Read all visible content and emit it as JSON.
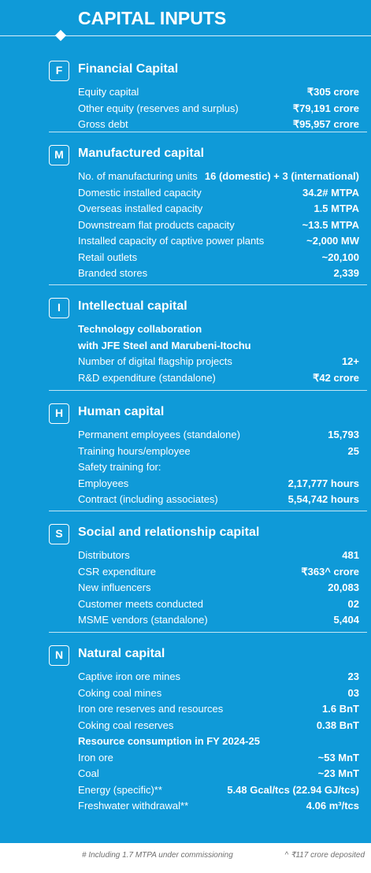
{
  "title": "CAPITAL INPUTS",
  "sections": [
    {
      "badge": "F",
      "title": "Financial Capital",
      "rows": [
        {
          "label": "Equity capital",
          "value": "₹305 crore"
        },
        {
          "label": "Other equity (reserves and surplus)",
          "value": "₹79,191 crore"
        },
        {
          "label": "Gross debt",
          "value": "₹95,957 crore"
        }
      ]
    },
    {
      "badge": "M",
      "title": "Manufactured capital",
      "rows": [
        {
          "label": "No. of manufacturing units",
          "value": "16 (domestic) + 3 (international)"
        },
        {
          "label": "Domestic installed capacity",
          "value": "34.2# MTPA"
        },
        {
          "label": "Overseas installed capacity",
          "value": "1.5 MTPA"
        },
        {
          "label": "Downstream flat products capacity",
          "value": "~13.5 MTPA"
        },
        {
          "label": "Installed capacity of captive power plants",
          "value": "~2,000 MW"
        },
        {
          "label": "Retail outlets",
          "value": "~20,100"
        },
        {
          "label": "Branded stores",
          "value": "2,339"
        }
      ]
    },
    {
      "badge": "I",
      "title": "Intellectual capital",
      "rows": [
        {
          "label": "Technology collaboration",
          "value": "",
          "sub": true
        },
        {
          "label": "with JFE Steel and Marubeni-Itochu",
          "value": "",
          "sub": true
        },
        {
          "label": "Number of digital flagship projects",
          "value": "12+"
        },
        {
          "label": "R&D expenditure (standalone)",
          "value": "₹42 crore"
        }
      ]
    },
    {
      "badge": "H",
      "title": "Human capital",
      "rows": [
        {
          "label": "Permanent employees (standalone)",
          "value": "15,793"
        },
        {
          "label": "Training hours/employee",
          "value": "25"
        },
        {
          "label": "Safety training for:",
          "value": ""
        },
        {
          "label": "Employees",
          "value": "2,17,777 hours"
        },
        {
          "label": "Contract (including associates)",
          "value": "5,54,742 hours"
        }
      ]
    },
    {
      "badge": "S",
      "title": "Social and relationship capital",
      "rows": [
        {
          "label": "Distributors",
          "value": "481"
        },
        {
          "label": "CSR expenditure",
          "value": "₹363^ crore"
        },
        {
          "label": "New influencers",
          "value": "20,083"
        },
        {
          "label": "Customer meets conducted",
          "value": "02"
        },
        {
          "label": "MSME vendors (standalone)",
          "value": "5,404"
        }
      ]
    },
    {
      "badge": "N",
      "title": "Natural capital",
      "rows": [
        {
          "label": "Captive iron ore mines",
          "value": "23"
        },
        {
          "label": "Coking coal mines",
          "value": "03"
        },
        {
          "label": "Iron ore reserves and resources",
          "value": "1.6 BnT"
        },
        {
          "label": "Coking coal reserves",
          "value": "0.38 BnT"
        },
        {
          "label": "Resource consumption in FY 2024-25",
          "value": "",
          "sub": true
        },
        {
          "label": "Iron ore",
          "value": "~53 MnT"
        },
        {
          "label": "Coal",
          "value": "~23 MnT"
        },
        {
          "label": "Energy (specific)**",
          "value": "5.48 Gcal/tcs (22.94 GJ/tcs)"
        },
        {
          "label": "Freshwater withdrawal**",
          "value": "4.06 m³/tcs"
        }
      ]
    }
  ],
  "footnotes": {
    "left": "# Including 1.7 MTPA under commissioning",
    "right": "^ ₹117 crore deposited"
  }
}
